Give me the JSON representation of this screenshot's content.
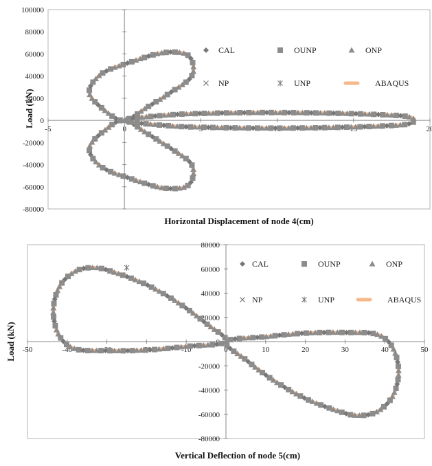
{
  "colors": {
    "plot_border": "#b5b5b5",
    "axis": "#8a8a8a",
    "abaqus": "#f6b98c",
    "marker": "#8c8c8c",
    "marker_dark": "#777777"
  },
  "chart_data": [
    {
      "type": "scatter",
      "xlabel": "Horizontal Displacement of node 4(cm)",
      "ylabel": "Load (kN)",
      "xlim": [
        -5,
        20
      ],
      "ylim": [
        -80000,
        100000
      ],
      "xticks": [
        "-5",
        "0",
        "5",
        "10",
        "15",
        "20"
      ],
      "yticks": [
        "100000",
        "80000",
        "60000",
        "40000",
        "20000",
        "0",
        "-20000",
        "-40000",
        "-60000",
        "-80000"
      ],
      "legend": [
        "CAL",
        "OUNP",
        "ONP",
        "NP",
        "UNP",
        "ABAQUS"
      ],
      "grid": true,
      "series": [
        {
          "name": "ABAQUS",
          "loops": [
            {
              "x": [
                0,
                -1.2,
                -2.3,
                -1.5,
                0.5,
                2.5,
                4.0,
                4.5,
                4.3,
                3.0,
                1.5,
                0
              ],
              "y": [
                0,
                8000,
                25000,
                42000,
                53000,
                61000,
                60000,
                50000,
                38000,
                25000,
                12000,
                0
              ]
            },
            {
              "x": [
                0,
                -1.2,
                -2.3,
                -1.5,
                0.5,
                2.5,
                4.0,
                4.5,
                4.3,
                3.0,
                1.5,
                0
              ],
              "y": [
                0,
                -8000,
                -25000,
                -42000,
                -53000,
                -61000,
                -60000,
                -50000,
                -38000,
                -25000,
                -12000,
                0
              ]
            },
            {
              "x": [
                0,
                3,
                6,
                9,
                12,
                15,
                17,
                18.5,
                19,
                18.5,
                17,
                15,
                12,
                9,
                6,
                3,
                0
              ],
              "y": [
                0,
                5000,
                6500,
                7000,
                6800,
                6000,
                5000,
                3500,
                0,
                -3500,
                -5000,
                -6000,
                -6800,
                -7000,
                -6500,
                -5000,
                0
              ]
            }
          ]
        }
      ]
    },
    {
      "type": "scatter",
      "xlabel": "Vertical Deflection of node 5(cm)",
      "ylabel": "Load (kN)",
      "xlim": [
        -50,
        50
      ],
      "ylim": [
        -80000,
        80000
      ],
      "xticks": [
        "-50",
        "-40",
        "-30",
        "-20",
        "-10",
        "0",
        "10",
        "20",
        "30",
        "40",
        "50"
      ],
      "yticks": [
        "80000",
        "60000",
        "40000",
        "20000",
        "0",
        "-20000",
        "-40000",
        "-60000",
        "-80000"
      ],
      "legend": [
        "CAL",
        "OUNP",
        "ONP",
        "NP",
        "UNP",
        "ABAQUS"
      ],
      "grid": true,
      "series": [
        {
          "name": "ABAQUS",
          "loops": [
            {
              "x": [
                0,
                -5,
                -12,
                -20,
                -28,
                -33,
                -38,
                -42,
                -43.5,
                -42,
                -38,
                -30,
                -20,
                -10,
                0
              ],
              "y": [
                0,
                15000,
                32000,
                47000,
                57000,
                61000,
                58000,
                45000,
                25000,
                5000,
                -6000,
                -7500,
                -7000,
                -4000,
                0
              ]
            },
            {
              "x": [
                0,
                5,
                12,
                20,
                28,
                33,
                38,
                42,
                43.5,
                42,
                38,
                30,
                20,
                10,
                0
              ],
              "y": [
                0,
                -15000,
                -32000,
                -47000,
                -57000,
                -61000,
                -58000,
                -45000,
                -25000,
                -5000,
                6000,
                7500,
                7000,
                4000,
                0
              ]
            }
          ]
        },
        {
          "name": "UNP",
          "x": [
            -25
          ],
          "y": [
            61000
          ]
        }
      ]
    }
  ]
}
